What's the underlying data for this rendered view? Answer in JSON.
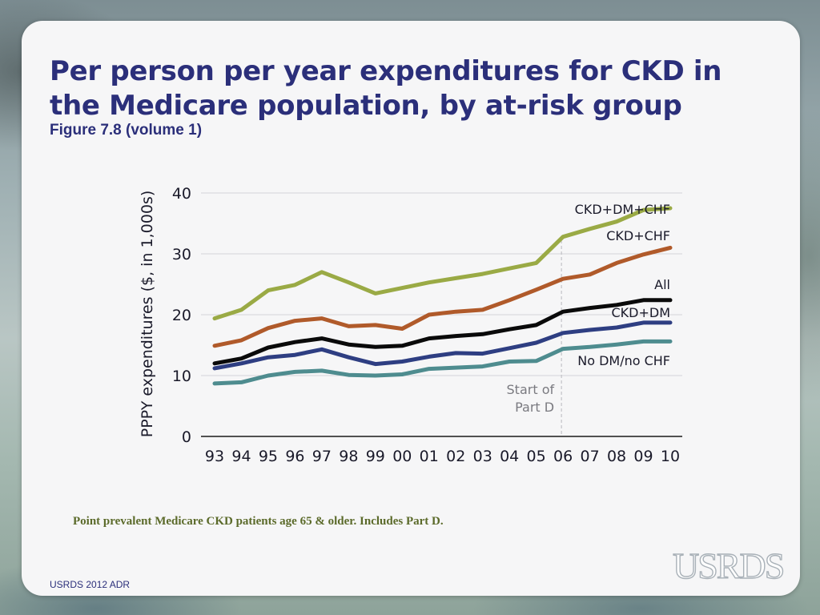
{
  "title": "Per person per year expenditures for CKD in the Medicare population, by at-risk group",
  "subtitle": "Figure 7.8 (volume 1)",
  "note": "Point prevalent Medicare CKD patients age 65 & older. Includes Part D.",
  "footer": "USRDS 2012 ADR",
  "logo_text": "USRDS",
  "chart_data": {
    "type": "line",
    "title": "",
    "xlabel": "",
    "ylabel": "PPPY expenditures ($, in 1,000s)",
    "ylim": [
      0,
      40
    ],
    "yticks": [
      "0",
      "10",
      "20",
      "30",
      "40"
    ],
    "categories": [
      "93",
      "94",
      "95",
      "96",
      "97",
      "98",
      "99",
      "00",
      "01",
      "02",
      "03",
      "04",
      "05",
      "06",
      "07",
      "08",
      "09",
      "10"
    ],
    "grid": true,
    "annotation": {
      "lines": [
        "Start of",
        "Part D"
      ],
      "at_category": "06"
    },
    "series": [
      {
        "name": "CKD+DM+CHF",
        "color": "#9aaa45",
        "values": [
          19.4,
          20.8,
          24.0,
          24.9,
          27.0,
          25.3,
          23.5,
          24.4,
          25.3,
          26.0,
          26.7,
          27.6,
          28.5,
          32.8,
          34.1,
          35.3,
          37.2,
          37.5
        ]
      },
      {
        "name": "CKD+CHF",
        "color": "#b05a2a",
        "values": [
          14.9,
          15.8,
          17.8,
          19.0,
          19.4,
          18.1,
          18.3,
          17.7,
          20.0,
          20.5,
          20.8,
          22.4,
          24.1,
          25.9,
          26.6,
          28.5,
          29.9,
          31.0
        ]
      },
      {
        "name": "All",
        "color": "#0a0a0a",
        "values": [
          12.0,
          12.8,
          14.6,
          15.5,
          16.1,
          15.1,
          14.7,
          14.9,
          16.1,
          16.5,
          16.8,
          17.6,
          18.3,
          20.5,
          21.1,
          21.6,
          22.4,
          22.4
        ]
      },
      {
        "name": "CKD+DM",
        "color": "#2e3e82",
        "values": [
          11.2,
          12.0,
          13.0,
          13.4,
          14.3,
          13.0,
          11.9,
          12.3,
          13.1,
          13.7,
          13.6,
          14.5,
          15.4,
          17.0,
          17.5,
          17.9,
          18.7,
          18.7
        ]
      },
      {
        "name": "No DM/no CHF",
        "color": "#4e8c8f",
        "values": [
          8.7,
          8.9,
          10.0,
          10.6,
          10.8,
          10.1,
          10.0,
          10.2,
          11.1,
          11.3,
          11.5,
          12.3,
          12.4,
          14.4,
          14.7,
          15.1,
          15.6,
          15.6
        ]
      }
    ]
  }
}
